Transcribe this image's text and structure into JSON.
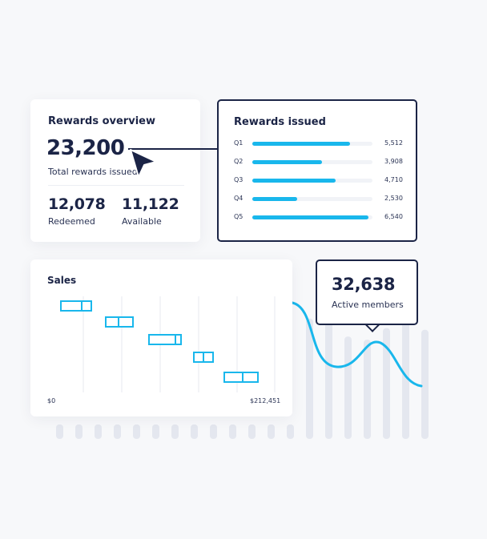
{
  "overview": {
    "title": "Rewards overview",
    "total": "23,200",
    "total_label": "Total rewards issued",
    "redeemed": {
      "value": "12,078",
      "label": "Redeemed"
    },
    "available": {
      "value": "11,122",
      "label": "Available"
    }
  },
  "issued": {
    "title": "Rewards issued",
    "max": 6540,
    "rows": [
      {
        "q": "Q1",
        "value": 5512,
        "label": "5,512"
      },
      {
        "q": "Q2",
        "value": 3908,
        "label": "3,908"
      },
      {
        "q": "Q3",
        "value": 4710,
        "label": "4,710"
      },
      {
        "q": "Q4",
        "value": 2530,
        "label": "2,530"
      },
      {
        "q": "Q5",
        "value": 6540,
        "label": "6,540"
      }
    ]
  },
  "sales": {
    "title": "Sales",
    "min_label": "$0",
    "max_label": "$212,451"
  },
  "members": {
    "value": "32,638",
    "label": "Active members"
  },
  "colors": {
    "accent": "#19b7ec",
    "ink": "#1b2446",
    "muted_bar": "#e4e7ef"
  },
  "icons": [
    "cursor-arrow-icon"
  ]
}
